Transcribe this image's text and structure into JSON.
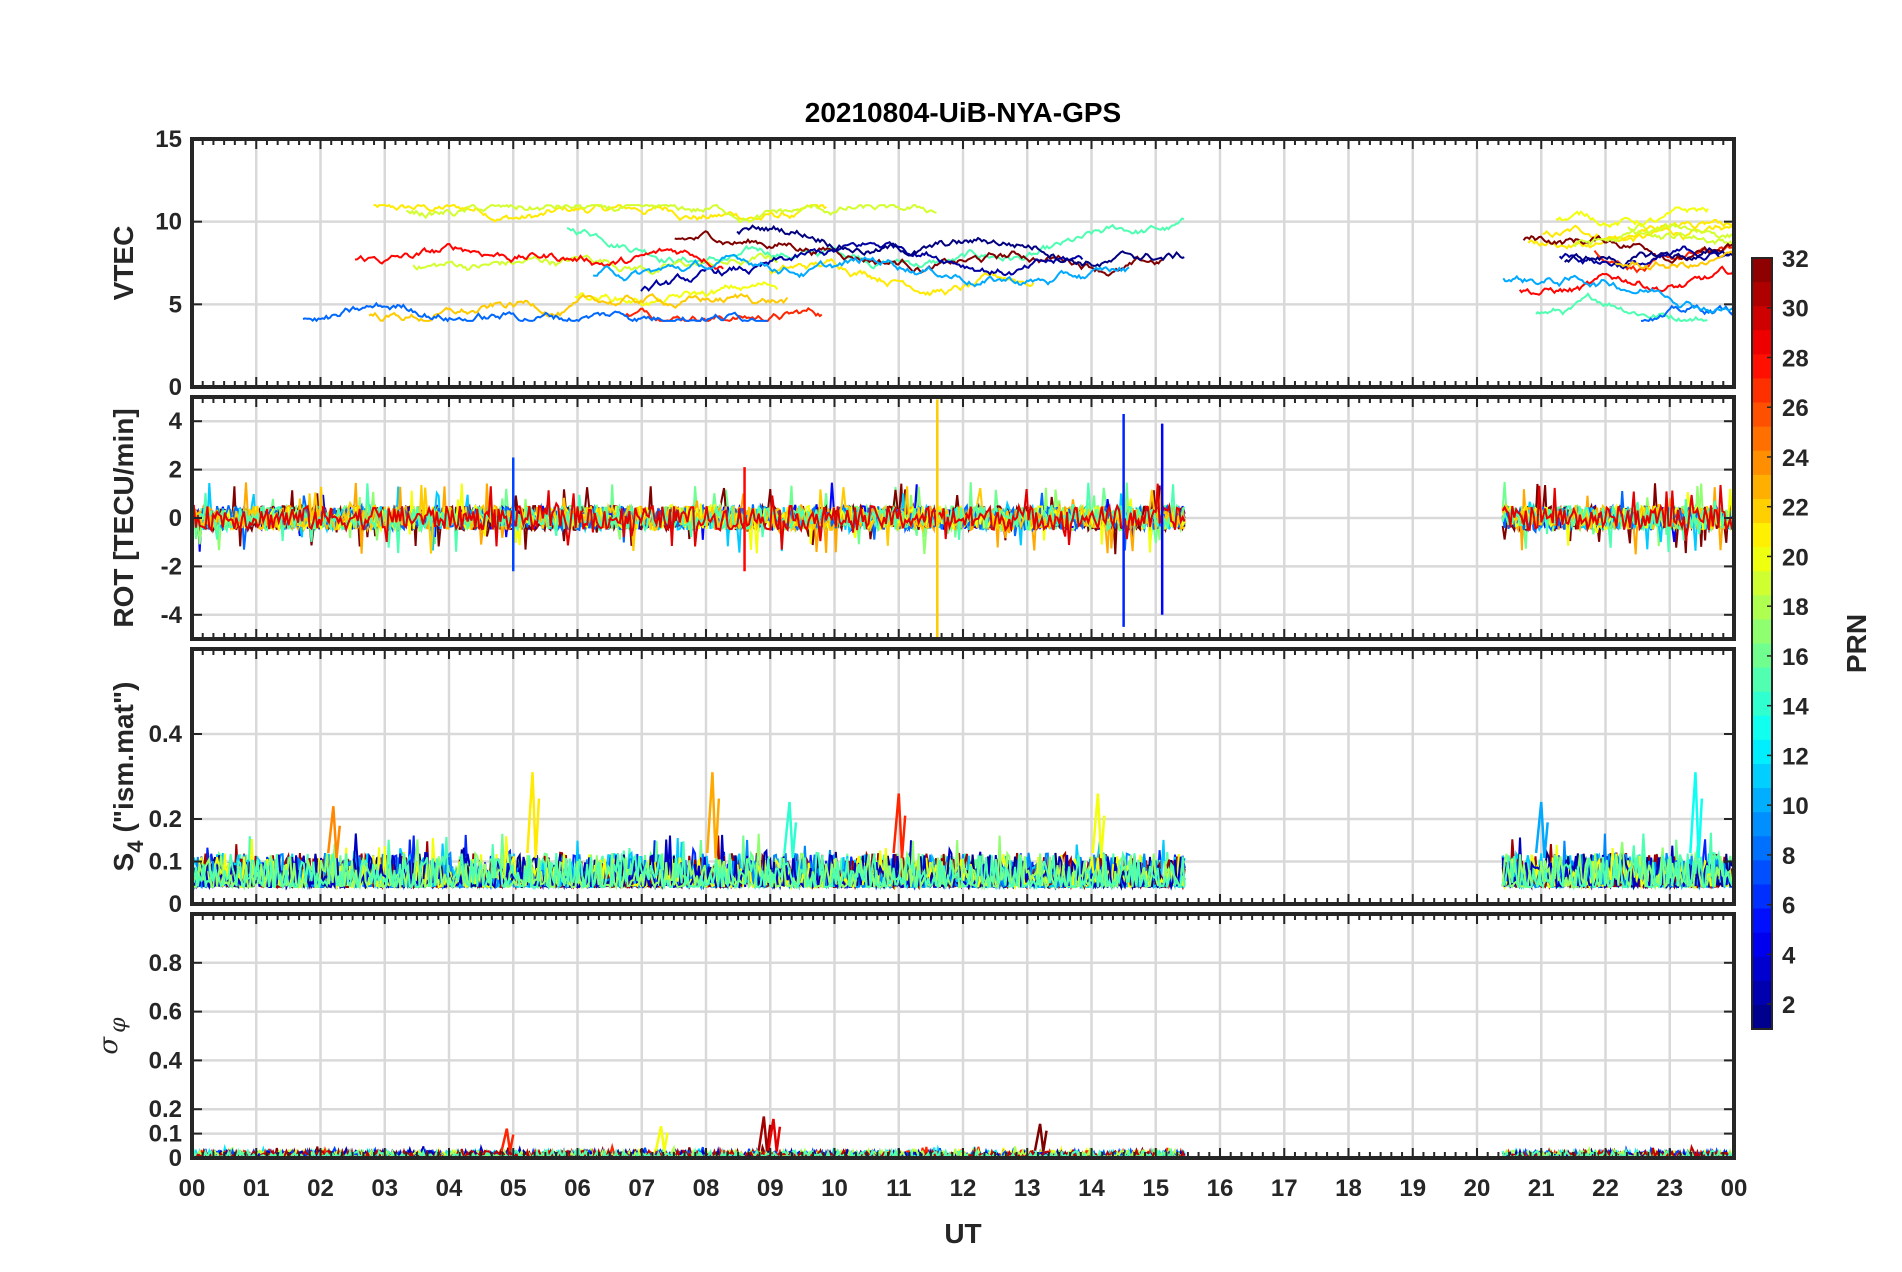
{
  "chart_data": {
    "type": "line",
    "title": "20210804-UiB-NYA-GPS",
    "xlabel": "UT",
    "x_ticks": [
      "00",
      "01",
      "02",
      "03",
      "04",
      "05",
      "06",
      "07",
      "08",
      "09",
      "10",
      "11",
      "12",
      "13",
      "14",
      "15",
      "16",
      "17",
      "18",
      "19",
      "20",
      "21",
      "22",
      "23",
      "00"
    ],
    "xlim": [
      0,
      24
    ],
    "data_coverage_hours": [
      [
        0,
        15.45
      ],
      [
        20.4,
        24
      ]
    ],
    "colorbar": {
      "label": "PRN",
      "range": [
        1,
        32
      ],
      "ticks": [
        "2",
        "4",
        "6",
        "8",
        "10",
        "12",
        "14",
        "16",
        "18",
        "20",
        "22",
        "24",
        "26",
        "28",
        "30",
        "32"
      ],
      "colormap": "jet"
    },
    "panels": [
      {
        "id": "vtec",
        "ylabel": "VTEC",
        "ylim": [
          0,
          15
        ],
        "y_ticks": [
          "0",
          "5",
          "10",
          "15"
        ],
        "y_tick_values": [
          0,
          5,
          10,
          15
        ],
        "typical_range": [
          4,
          11
        ]
      },
      {
        "id": "rot",
        "ylabel": "ROT [TECU/min]",
        "ylim": [
          -5,
          5
        ],
        "y_ticks": [
          "-4",
          "-2",
          "0",
          "2",
          "4"
        ],
        "y_tick_values": [
          -4,
          -2,
          0,
          2,
          4
        ],
        "typical_range": [
          -0.5,
          0.5
        ],
        "spikes": [
          {
            "t": 11.6,
            "min": -5.0,
            "max": 4.9,
            "prn": 22
          },
          {
            "t": 14.5,
            "min": -4.5,
            "max": 4.3,
            "prn": 6
          },
          {
            "t": 15.1,
            "min": -4.0,
            "max": 3.9,
            "prn": 5
          },
          {
            "t": 5.0,
            "min": -2.2,
            "max": 2.5,
            "prn": 7
          },
          {
            "t": 8.6,
            "min": -2.2,
            "max": 2.1,
            "prn": 28
          }
        ]
      },
      {
        "id": "s4",
        "ylabel_main": "S",
        "ylabel_sub": "4",
        "ylabel_rest": "(\"ism.mat\")",
        "ylim": [
          0,
          0.6
        ],
        "y_ticks": [
          "0",
          "0.1",
          "0.2",
          "0.4"
        ],
        "y_tick_values": [
          0,
          0.1,
          0.2,
          0.4
        ],
        "typical_range": [
          0.04,
          0.12
        ],
        "peaks": [
          {
            "t": 5.3,
            "value": 0.31,
            "prn": 21
          },
          {
            "t": 8.1,
            "value": 0.31,
            "prn": 23
          },
          {
            "t": 23.4,
            "value": 0.31,
            "prn": 13
          },
          {
            "t": 11.0,
            "value": 0.26,
            "prn": 27
          },
          {
            "t": 14.1,
            "value": 0.26,
            "prn": 20
          },
          {
            "t": 21.0,
            "value": 0.24,
            "prn": 10
          },
          {
            "t": 2.2,
            "value": 0.23,
            "prn": 24
          },
          {
            "t": 9.3,
            "value": 0.24,
            "prn": 14
          }
        ]
      },
      {
        "id": "sigphi",
        "ylabel_main": "σ",
        "ylabel_sub": "φ",
        "ylim": [
          0,
          1
        ],
        "y_ticks": [
          "0",
          "0.1",
          "0.2",
          "0.4",
          "0.6",
          "0.8"
        ],
        "y_tick_values": [
          0,
          0.1,
          0.2,
          0.4,
          0.6,
          0.8
        ],
        "typical_range": [
          0.0,
          0.03
        ],
        "peaks": [
          {
            "t": 8.9,
            "value": 0.17,
            "prn": 31
          },
          {
            "t": 9.05,
            "value": 0.16,
            "prn": 29
          },
          {
            "t": 13.2,
            "value": 0.14,
            "prn": 32
          },
          {
            "t": 7.3,
            "value": 0.13,
            "prn": 20
          },
          {
            "t": 4.9,
            "value": 0.12,
            "prn": 27
          }
        ]
      }
    ]
  }
}
